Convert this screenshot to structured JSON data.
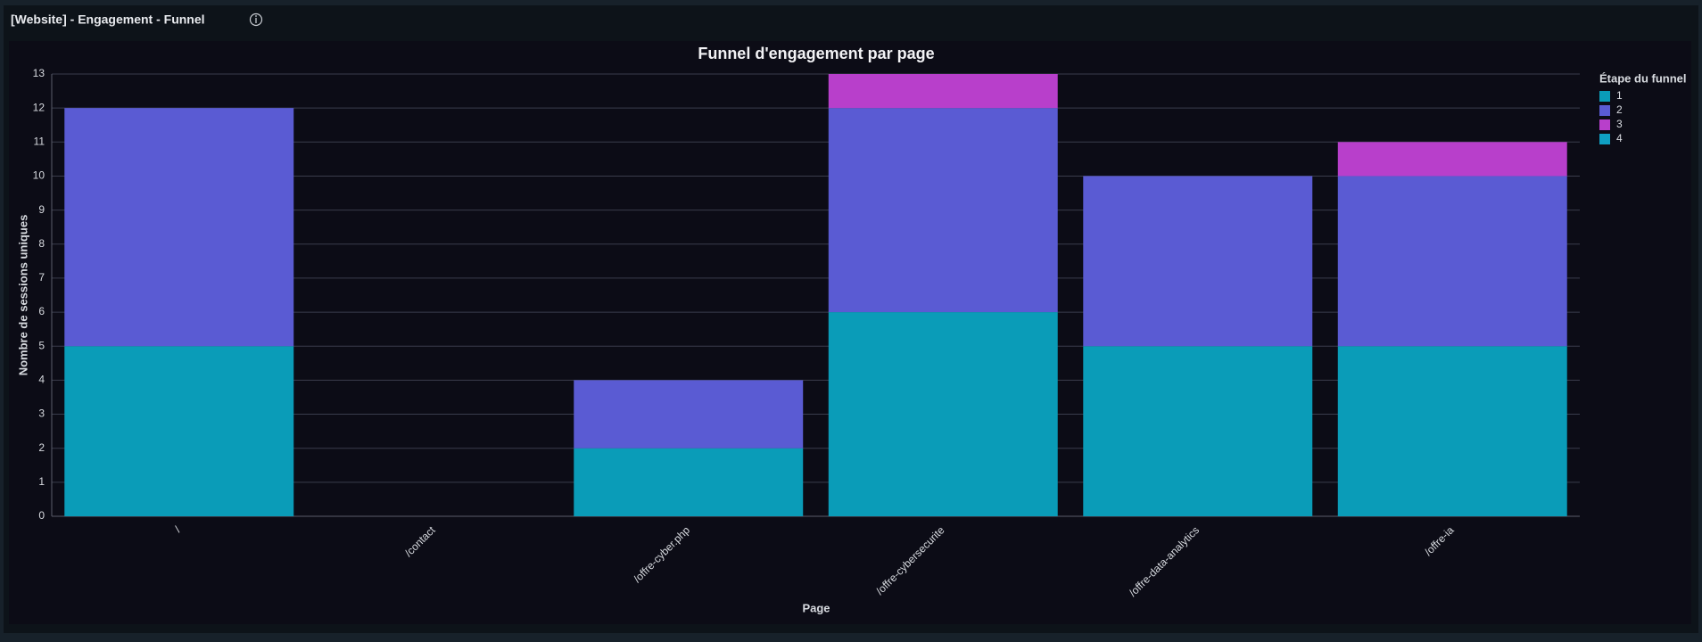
{
  "header": {
    "title": "[Website] - Engagement - Funnel"
  },
  "chart_data": {
    "type": "bar",
    "stacked": true,
    "title": "Funnel d'engagement par page",
    "xlabel": "Page",
    "ylabel": "Nombre de sessions uniques",
    "legend_title": "Étape du funnel",
    "legend": "right",
    "categories": [
      "/",
      "/contact",
      "/offre-cyber.php",
      "/offre-cybersecurite",
      "/offre-data-analytics",
      "/offre-ia"
    ],
    "series": [
      {
        "name": "1",
        "color": "#0a9cb8",
        "values": [
          5,
          0,
          2,
          6,
          5,
          5
        ]
      },
      {
        "name": "2",
        "color": "#5a5bd3",
        "values": [
          7,
          0,
          2,
          6,
          5,
          5
        ]
      },
      {
        "name": "3",
        "color": "#b83fcb",
        "values": [
          0,
          0,
          0,
          1,
          0,
          1
        ]
      },
      {
        "name": "4",
        "color": "#0f9fc2",
        "values": [
          0,
          0,
          0,
          0,
          0,
          0
        ]
      }
    ],
    "ylim": [
      0,
      13
    ],
    "yticks": [
      0,
      1,
      2,
      3,
      4,
      5,
      6,
      7,
      8,
      9,
      10,
      11,
      12,
      13
    ],
    "grid": true
  }
}
